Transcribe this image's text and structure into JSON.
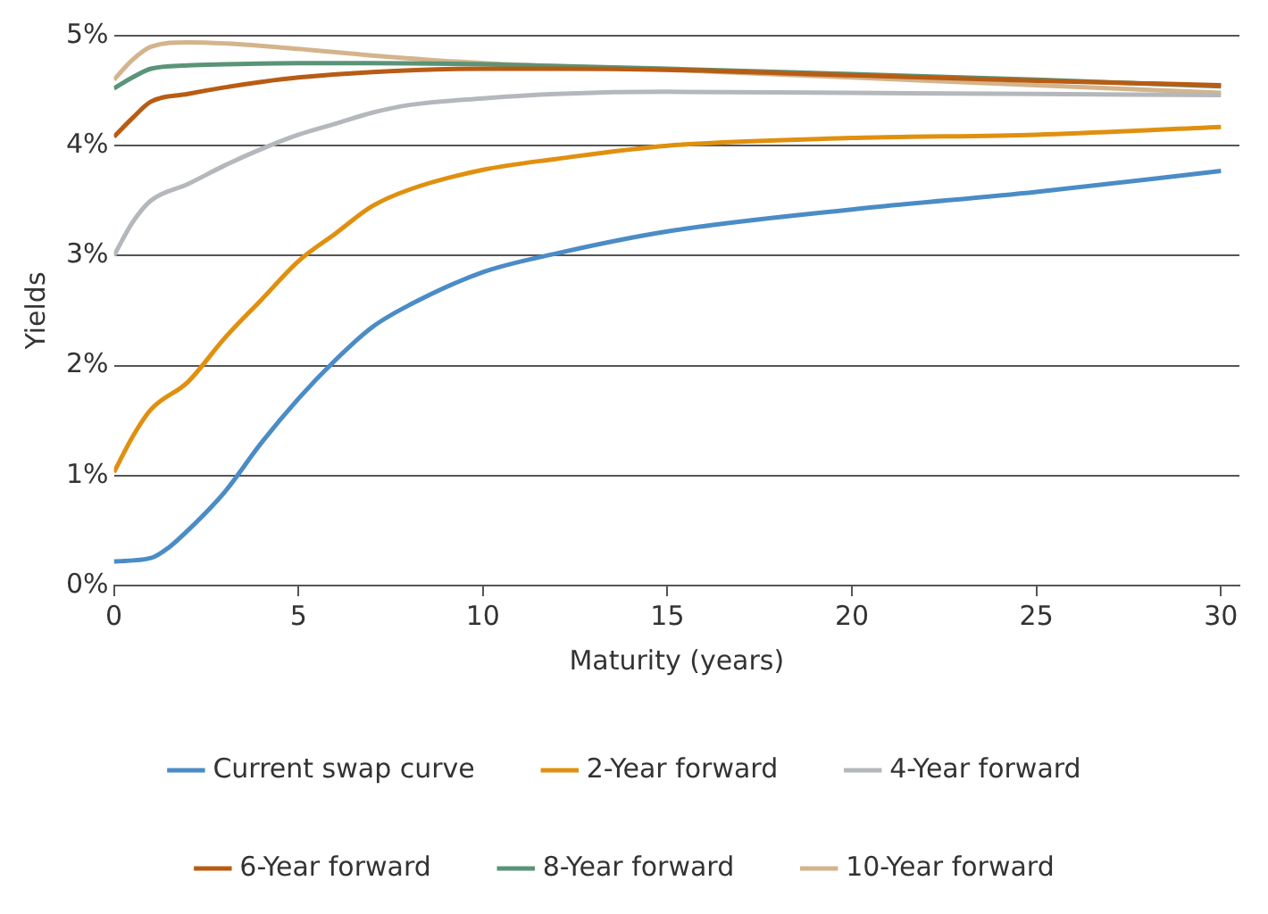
{
  "chart_data": {
    "type": "line",
    "xlabel": "Maturity (years)",
    "ylabel": "Yields",
    "xlim": [
      0,
      30.5
    ],
    "xticks": [
      0,
      5,
      10,
      15,
      20,
      25,
      30
    ],
    "ylim": [
      0,
      5
    ],
    "yticks": [
      {
        "value": 0,
        "label": "0%"
      },
      {
        "value": 1,
        "label": "1%"
      },
      {
        "value": 2,
        "label": "2%"
      },
      {
        "value": 3,
        "label": "3%"
      },
      {
        "value": 4,
        "label": "4%"
      },
      {
        "value": 5,
        "label": "5%"
      }
    ],
    "grid": "y",
    "legend": "bottom",
    "marker": "none",
    "line_style": "solid",
    "series": [
      {
        "name": "Current swap curve",
        "color": "#4a8cc6",
        "x": [
          0,
          1,
          1.5,
          2,
          3,
          4,
          5,
          6,
          7,
          8,
          10,
          12,
          15,
          20,
          25,
          30
        ],
        "values": [
          0.22,
          0.25,
          0.35,
          0.5,
          0.85,
          1.3,
          1.7,
          2.05,
          2.35,
          2.55,
          2.85,
          3.02,
          3.22,
          3.42,
          3.58,
          3.77
        ]
      },
      {
        "name": "2-Year forward",
        "color": "#e0900f",
        "x": [
          0,
          0.5,
          1,
          2,
          3,
          4,
          5,
          6,
          7,
          8,
          10,
          12,
          15,
          20,
          25,
          30
        ],
        "values": [
          1.03,
          1.35,
          1.6,
          1.85,
          2.25,
          2.6,
          2.95,
          3.2,
          3.45,
          3.6,
          3.78,
          3.88,
          4.0,
          4.07,
          4.1,
          4.17
        ]
      },
      {
        "name": "4-Year forward",
        "color": "#b4b8bc",
        "x": [
          0,
          0.5,
          1,
          2,
          3,
          4,
          5,
          6,
          7,
          8,
          10,
          12,
          15,
          20,
          25,
          30
        ],
        "values": [
          3.0,
          3.3,
          3.5,
          3.65,
          3.82,
          3.97,
          4.1,
          4.2,
          4.3,
          4.37,
          4.43,
          4.47,
          4.49,
          4.48,
          4.47,
          4.46
        ]
      },
      {
        "name": "6-Year forward",
        "color": "#b85c14",
        "x": [
          0,
          0.5,
          1,
          2,
          3,
          4,
          5,
          7,
          10,
          12,
          15,
          20,
          25,
          30
        ],
        "values": [
          4.08,
          4.25,
          4.4,
          4.47,
          4.53,
          4.58,
          4.62,
          4.67,
          4.7,
          4.7,
          4.69,
          4.64,
          4.59,
          4.55
        ]
      },
      {
        "name": "8-Year forward",
        "color": "#5a9478",
        "x": [
          0,
          0.5,
          1,
          2,
          3,
          5,
          7,
          10,
          15,
          20,
          25,
          30
        ],
        "values": [
          4.52,
          4.62,
          4.7,
          4.73,
          4.74,
          4.75,
          4.75,
          4.74,
          4.7,
          4.65,
          4.6,
          4.54
        ]
      },
      {
        "name": "10-Year forward",
        "color": "#d4b48c",
        "x": [
          0,
          0.5,
          1,
          2,
          3,
          5,
          7,
          10,
          15,
          20,
          25,
          30
        ],
        "values": [
          4.6,
          4.78,
          4.9,
          4.94,
          4.93,
          4.88,
          4.82,
          4.75,
          4.69,
          4.62,
          4.55,
          4.48
        ]
      }
    ]
  }
}
